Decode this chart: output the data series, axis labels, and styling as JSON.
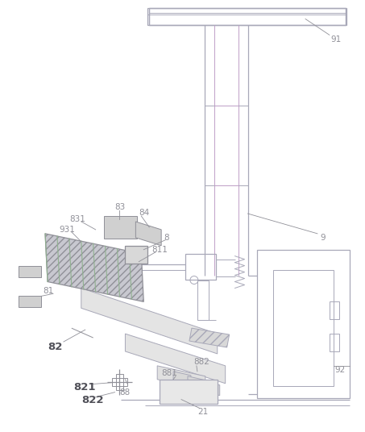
{
  "figsize": [
    4.53,
    5.36
  ],
  "dpi": 100,
  "lc": "#a8a8b8",
  "dc": "#909098",
  "pc": "#c0a0c8",
  "gc": "#90b090",
  "lw": 0.9,
  "lw2": 0.7
}
